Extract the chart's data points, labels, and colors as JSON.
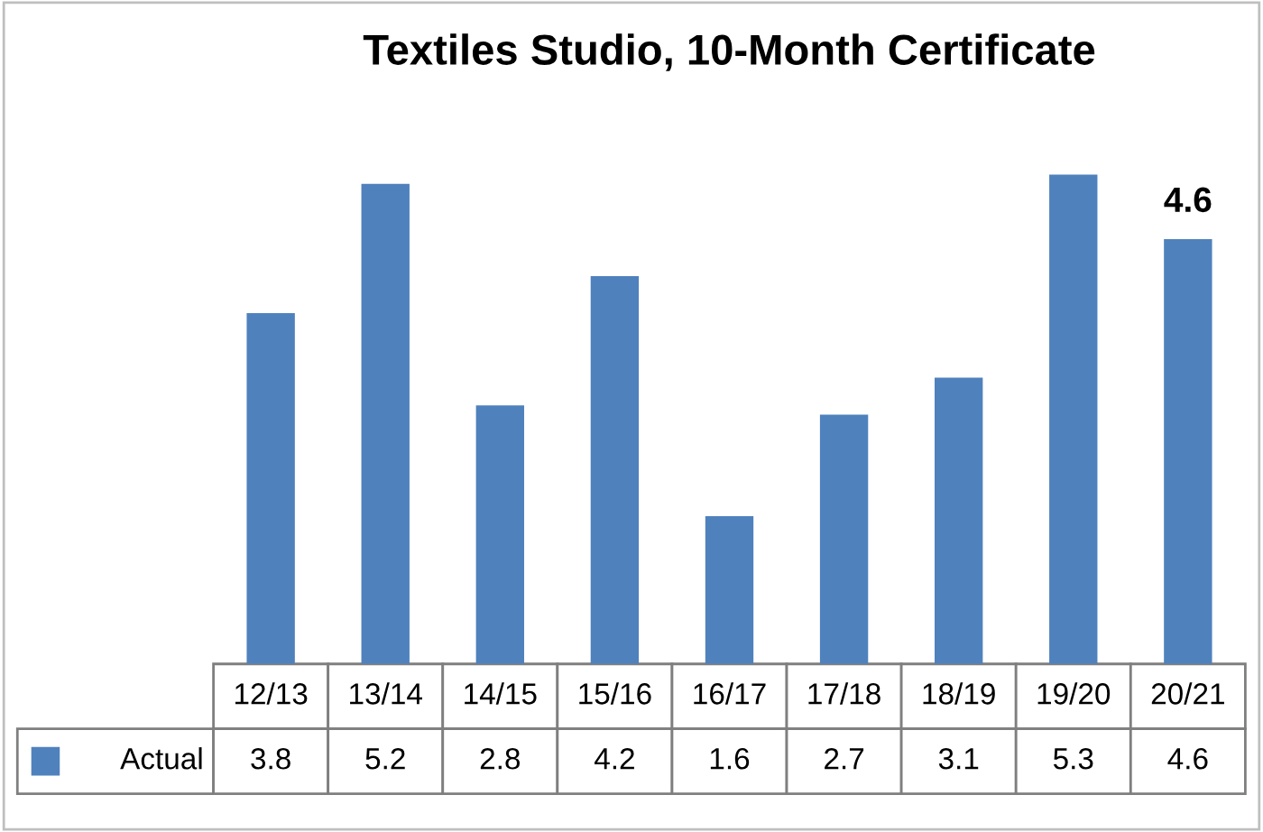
{
  "chart_data": {
    "type": "bar",
    "title": "Textiles Studio, 10-Month Certificate",
    "categories": [
      "12/13",
      "13/14",
      "14/15",
      "15/16",
      "16/17",
      "17/18",
      "18/19",
      "19/20",
      "20/21"
    ],
    "series": [
      {
        "name": "Actual",
        "color": "#4f81bd",
        "values": [
          3.8,
          5.2,
          2.8,
          4.2,
          1.6,
          2.7,
          3.1,
          5.3,
          4.6
        ]
      }
    ],
    "annotations": [
      {
        "text": "4.6",
        "x": "20/21",
        "y": 4.6
      }
    ],
    "data_labels": true,
    "legend": "bottom"
  }
}
